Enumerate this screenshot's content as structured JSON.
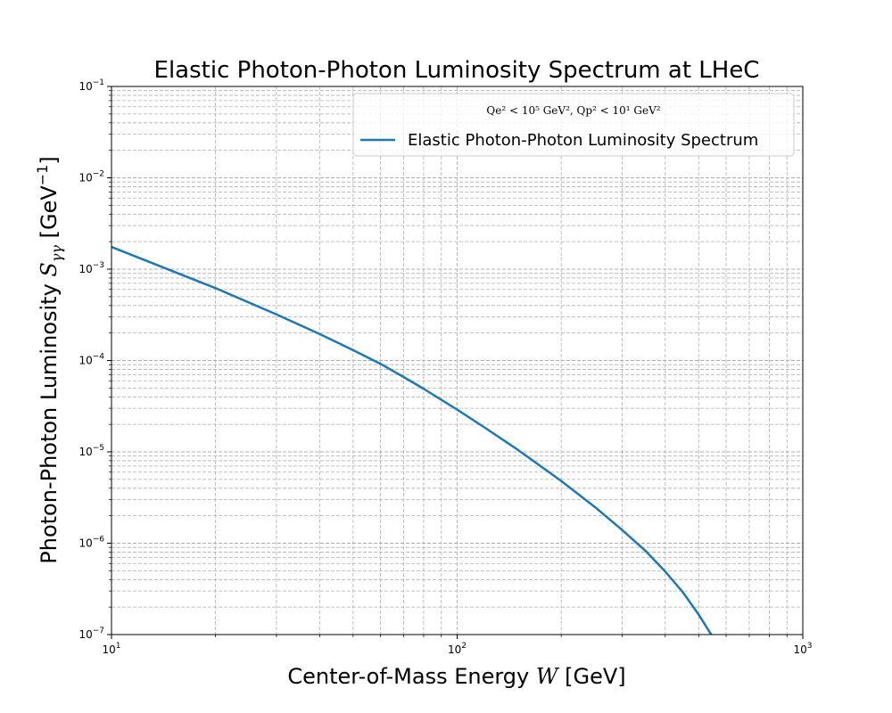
{
  "chart_data": {
    "type": "line",
    "title": "Elastic Photon-Photon Luminosity Spectrum at LHeC",
    "xlabel": {
      "prefix": "Center-of-Mass Energy ",
      "symbol": "W",
      "suffix": " [GeV]"
    },
    "ylabel": {
      "prefix": "Photon-Photon Luminosity ",
      "symbol": "S",
      "subscript": "γγ",
      "unit_open": " [GeV",
      "unit_exp": "−1",
      "unit_close": "]"
    },
    "xscale": "log",
    "yscale": "log",
    "xlim": [
      10,
      1000
    ],
    "ylim": [
      1e-07,
      0.1
    ],
    "x_ticks": [
      {
        "base": "10",
        "exp": "1",
        "value": 10
      },
      {
        "base": "10",
        "exp": "2",
        "value": 100
      },
      {
        "base": "10",
        "exp": "3",
        "value": 1000
      }
    ],
    "y_ticks": [
      {
        "base": "10",
        "exp": "−7",
        "value": 1e-07
      },
      {
        "base": "10",
        "exp": "−6",
        "value": 1e-06
      },
      {
        "base": "10",
        "exp": "−5",
        "value": 1e-05
      },
      {
        "base": "10",
        "exp": "−4",
        "value": 0.0001
      },
      {
        "base": "10",
        "exp": "−3",
        "value": 0.001
      },
      {
        "base": "10",
        "exp": "−2",
        "value": 0.01
      },
      {
        "base": "10",
        "exp": "−1",
        "value": 0.1
      }
    ],
    "grid": "both",
    "legend_position": "upper right",
    "legend_title": "Qe² < 10⁵ GeV², Qp² < 10¹ GeV²",
    "series": [
      {
        "name": "Elastic Photon-Photon Luminosity Spectrum",
        "color": "#1f77b4",
        "x": [
          10,
          20,
          30,
          40,
          50,
          60,
          70,
          80,
          100,
          120,
          150,
          200,
          250,
          300,
          350,
          400,
          450,
          500,
          550
        ],
        "y": [
          0.00175,
          0.00062,
          0.00032,
          0.000195,
          0.00013,
          9.2e-05,
          6.6e-05,
          4.9e-05,
          2.9e-05,
          1.85e-05,
          1.05e-05,
          4.8e-06,
          2.5e-06,
          1.4e-06,
          8.3e-07,
          4.9e-07,
          2.9e-07,
          1.65e-07,
          9.3e-08
        ]
      }
    ]
  }
}
